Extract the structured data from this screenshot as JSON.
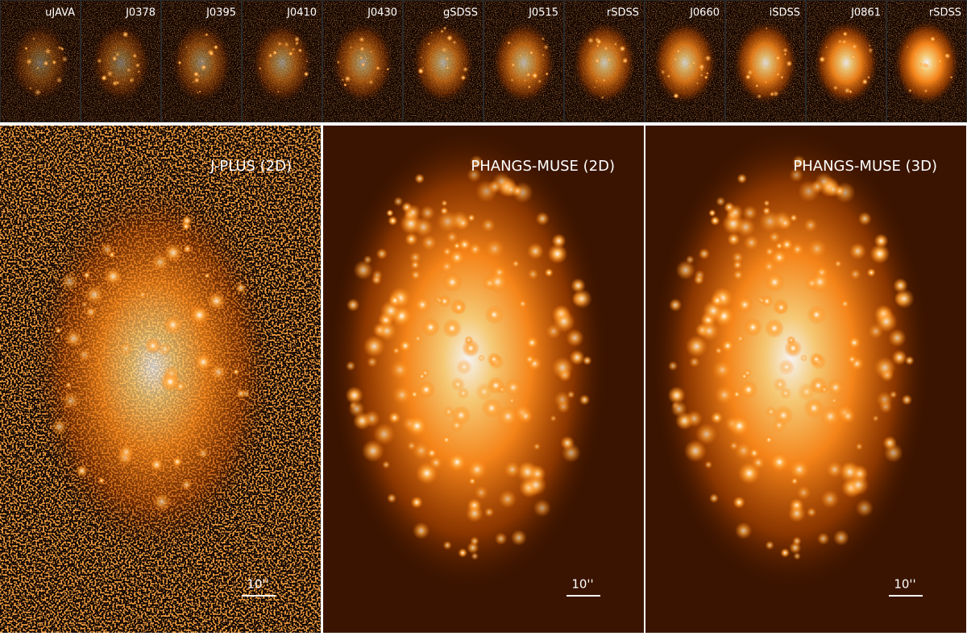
{
  "top_row": {
    "filters": [
      "uJAVA",
      "J0378",
      "J0395",
      "J0410",
      "J0430",
      "gSDSS",
      "J0515",
      "rSDSS",
      "J0660",
      "iSDSS",
      "J0861",
      "rSDSS"
    ]
  },
  "bottom_row": {
    "panels": [
      {
        "label": "J-PLUS (2D)",
        "scale_bar": "10''"
      },
      {
        "label": "PHANGS-MUSE (2D)",
        "scale_bar": "10''"
      },
      {
        "label": "PHANGS-MUSE (3D)",
        "scale_bar": "10''"
      }
    ]
  }
}
